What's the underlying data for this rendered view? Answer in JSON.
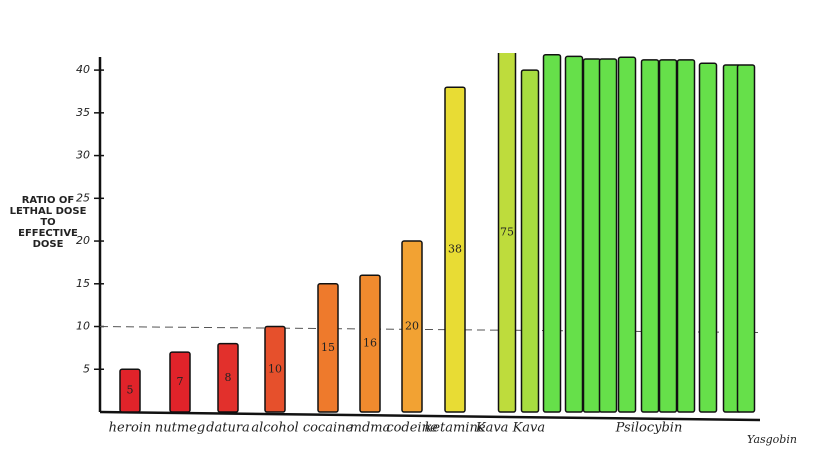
{
  "chart_data": {
    "type": "bar",
    "ylabel": [
      "RATIO OF",
      "LETHAL DOSE",
      "TO",
      "EFFECTIVE",
      "DOSE"
    ],
    "categories": [
      "heroin",
      "nutmeg",
      "datura",
      "alcohol",
      "cocaine",
      "mdma",
      "codeine",
      "ketamine",
      "Kava Kava",
      null,
      "Psilocybin",
      null,
      null,
      null,
      null,
      null,
      null,
      null,
      null,
      null,
      null
    ],
    "values": [
      5,
      7,
      8,
      10,
      15,
      16,
      20,
      38,
      75,
      40,
      41.8,
      41.6,
      41.3,
      41.3,
      41.5,
      41.2,
      41.2,
      41.2,
      40.8,
      40.6,
      40.6
    ],
    "value_labels": [
      "5",
      "7",
      "8",
      "10",
      "15",
      "16",
      "20",
      "38",
      "75",
      null,
      null,
      null,
      null,
      null,
      null,
      null,
      null,
      null,
      null,
      null,
      null
    ],
    "colors": [
      "#e0232a",
      "#e0232a",
      "#e2302c",
      "#e6502c",
      "#ee7a2c",
      "#f08a2e",
      "#f2a233",
      "#e8dc34",
      "#bedc3c",
      "#a8dc40",
      "#66e04a",
      "#66e04a",
      "#66e04a",
      "#66e04a",
      "#66e04a",
      "#66e04a",
      "#66e04a",
      "#66e04a",
      "#66e04a",
      "#66e04a",
      "#66e04a"
    ],
    "ylim": [
      0,
      42
    ],
    "yticks": [
      5,
      10,
      15,
      20,
      25,
      30,
      35,
      40
    ],
    "reference_line": 10,
    "signature": "Yasgobin"
  }
}
